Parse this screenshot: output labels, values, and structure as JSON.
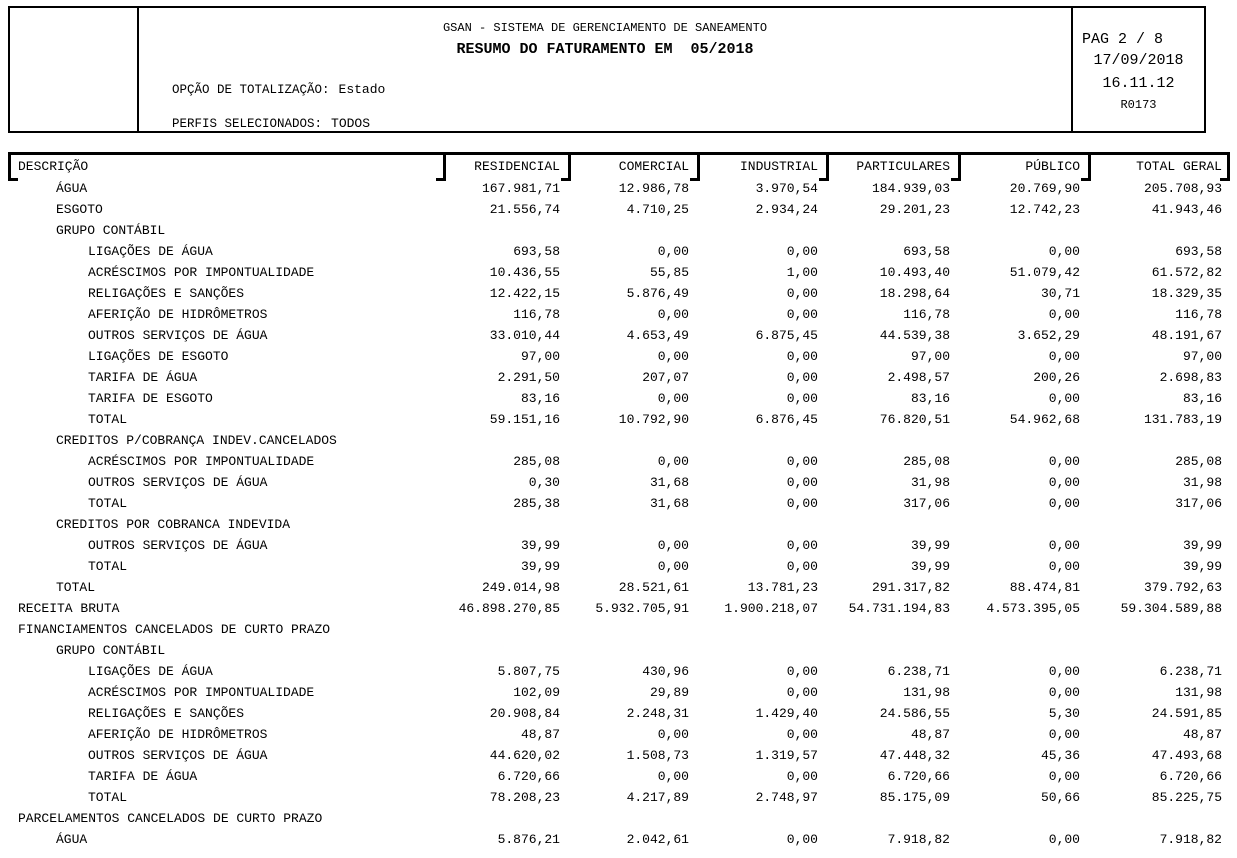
{
  "report_header": {
    "system_title": "GSAN - SISTEMA DE GERENCIAMENTO DE SANEAMENTO",
    "report_title": "RESUMO DO FATURAMENTO EM  05/2018",
    "totalization": {
      "label": "OPÇÃO DE TOTALIZAÇÃO:",
      "value": "Estado"
    },
    "profiles": {
      "label": "PERFIS SELECIONADOS:",
      "value": "TODOS"
    },
    "page_info": "PAG 2 / 8",
    "date": "17/09/2018",
    "time": "16.11.12",
    "report_code": "R0173"
  },
  "table": {
    "columns": [
      "DESCRIÇÃO",
      "RESIDENCIAL",
      "COMERCIAL",
      "INDUSTRIAL",
      "PARTICULARES",
      "PÚBLICO",
      "TOTAL GERAL"
    ],
    "rows": [
      {
        "desc": "ÁGUA",
        "level": 1,
        "values": [
          "167.981,71",
          "12.986,78",
          "3.970,54",
          "184.939,03",
          "20.769,90",
          "205.708,93"
        ]
      },
      {
        "desc": "ESGOTO",
        "level": 1,
        "values": [
          "21.556,74",
          "4.710,25",
          "2.934,24",
          "29.201,23",
          "12.742,23",
          "41.943,46"
        ]
      },
      {
        "desc": "GRUPO CONTÁBIL",
        "level": 1,
        "values": [
          "",
          "",
          "",
          "",
          "",
          ""
        ]
      },
      {
        "desc": "LIGAÇÕES DE ÁGUA",
        "level": 2,
        "values": [
          "693,58",
          "0,00",
          "0,00",
          "693,58",
          "0,00",
          "693,58"
        ]
      },
      {
        "desc": "ACRÉSCIMOS POR IMPONTUALIDADE",
        "level": 2,
        "values": [
          "10.436,55",
          "55,85",
          "1,00",
          "10.493,40",
          "51.079,42",
          "61.572,82"
        ]
      },
      {
        "desc": "RELIGAÇÕES E SANÇÕES",
        "level": 2,
        "values": [
          "12.422,15",
          "5.876,49",
          "0,00",
          "18.298,64",
          "30,71",
          "18.329,35"
        ]
      },
      {
        "desc": "AFERIÇÃO DE HIDRÔMETROS",
        "level": 2,
        "values": [
          "116,78",
          "0,00",
          "0,00",
          "116,78",
          "0,00",
          "116,78"
        ]
      },
      {
        "desc": "OUTROS SERVIÇOS DE ÁGUA",
        "level": 2,
        "values": [
          "33.010,44",
          "4.653,49",
          "6.875,45",
          "44.539,38",
          "3.652,29",
          "48.191,67"
        ]
      },
      {
        "desc": "LIGAÇÕES DE ESGOTO",
        "level": 2,
        "values": [
          "97,00",
          "0,00",
          "0,00",
          "97,00",
          "0,00",
          "97,00"
        ]
      },
      {
        "desc": "TARIFA DE ÁGUA",
        "level": 2,
        "values": [
          "2.291,50",
          "207,07",
          "0,00",
          "2.498,57",
          "200,26",
          "2.698,83"
        ]
      },
      {
        "desc": "TARIFA DE ESGOTO",
        "level": 2,
        "values": [
          "83,16",
          "0,00",
          "0,00",
          "83,16",
          "0,00",
          "83,16"
        ]
      },
      {
        "desc": "TOTAL",
        "level": 2,
        "values": [
          "59.151,16",
          "10.792,90",
          "6.876,45",
          "76.820,51",
          "54.962,68",
          "131.783,19"
        ]
      },
      {
        "desc": "CREDITOS P/COBRANÇA INDEV.CANCELADOS",
        "level": 1,
        "values": [
          "",
          "",
          "",
          "",
          "",
          ""
        ]
      },
      {
        "desc": "ACRÉSCIMOS POR IMPONTUALIDADE",
        "level": 2,
        "values": [
          "285,08",
          "0,00",
          "0,00",
          "285,08",
          "0,00",
          "285,08"
        ]
      },
      {
        "desc": "OUTROS SERVIÇOS DE ÁGUA",
        "level": 2,
        "values": [
          "0,30",
          "31,68",
          "0,00",
          "31,98",
          "0,00",
          "31,98"
        ]
      },
      {
        "desc": "TOTAL",
        "level": 2,
        "values": [
          "285,38",
          "31,68",
          "0,00",
          "317,06",
          "0,00",
          "317,06"
        ]
      },
      {
        "desc": "CREDITOS POR COBRANCA INDEVIDA",
        "level": 1,
        "values": [
          "",
          "",
          "",
          "",
          "",
          ""
        ]
      },
      {
        "desc": "OUTROS SERVIÇOS DE ÁGUA",
        "level": 2,
        "values": [
          "39,99",
          "0,00",
          "0,00",
          "39,99",
          "0,00",
          "39,99"
        ]
      },
      {
        "desc": "TOTAL",
        "level": 2,
        "values": [
          "39,99",
          "0,00",
          "0,00",
          "39,99",
          "0,00",
          "39,99"
        ]
      },
      {
        "desc": "TOTAL",
        "level": 1,
        "values": [
          "249.014,98",
          "28.521,61",
          "13.781,23",
          "291.317,82",
          "88.474,81",
          "379.792,63"
        ]
      },
      {
        "desc": "RECEITA BRUTA",
        "level": 0,
        "values": [
          "46.898.270,85",
          "5.932.705,91",
          "1.900.218,07",
          "54.731.194,83",
          "4.573.395,05",
          "59.304.589,88"
        ]
      },
      {
        "desc": "FINANCIAMENTOS CANCELADOS DE CURTO PRAZO",
        "level": 0,
        "values": [
          "",
          "",
          "",
          "",
          "",
          ""
        ]
      },
      {
        "desc": "GRUPO CONTÁBIL",
        "level": 1,
        "values": [
          "",
          "",
          "",
          "",
          "",
          ""
        ]
      },
      {
        "desc": "LIGAÇÕES DE ÁGUA",
        "level": 2,
        "values": [
          "5.807,75",
          "430,96",
          "0,00",
          "6.238,71",
          "0,00",
          "6.238,71"
        ]
      },
      {
        "desc": "ACRÉSCIMOS POR IMPONTUALIDADE",
        "level": 2,
        "values": [
          "102,09",
          "29,89",
          "0,00",
          "131,98",
          "0,00",
          "131,98"
        ]
      },
      {
        "desc": "RELIGAÇÕES E SANÇÕES",
        "level": 2,
        "values": [
          "20.908,84",
          "2.248,31",
          "1.429,40",
          "24.586,55",
          "5,30",
          "24.591,85"
        ]
      },
      {
        "desc": "AFERIÇÃO DE HIDRÔMETROS",
        "level": 2,
        "values": [
          "48,87",
          "0,00",
          "0,00",
          "48,87",
          "0,00",
          "48,87"
        ]
      },
      {
        "desc": "OUTROS SERVIÇOS DE ÁGUA",
        "level": 2,
        "values": [
          "44.620,02",
          "1.508,73",
          "1.319,57",
          "47.448,32",
          "45,36",
          "47.493,68"
        ]
      },
      {
        "desc": "TARIFA DE ÁGUA",
        "level": 2,
        "values": [
          "6.720,66",
          "0,00",
          "0,00",
          "6.720,66",
          "0,00",
          "6.720,66"
        ]
      },
      {
        "desc": "TOTAL",
        "level": 2,
        "values": [
          "78.208,23",
          "4.217,89",
          "2.748,97",
          "85.175,09",
          "50,66",
          "85.225,75"
        ]
      },
      {
        "desc": "PARCELAMENTOS CANCELADOS DE CURTO PRAZO",
        "level": 0,
        "values": [
          "",
          "",
          "",
          "",
          "",
          ""
        ]
      },
      {
        "desc": "ÁGUA",
        "level": 1,
        "values": [
          "5.876,21",
          "2.042,61",
          "0,00",
          "7.918,82",
          "0,00",
          "7.918,82"
        ]
      }
    ]
  }
}
